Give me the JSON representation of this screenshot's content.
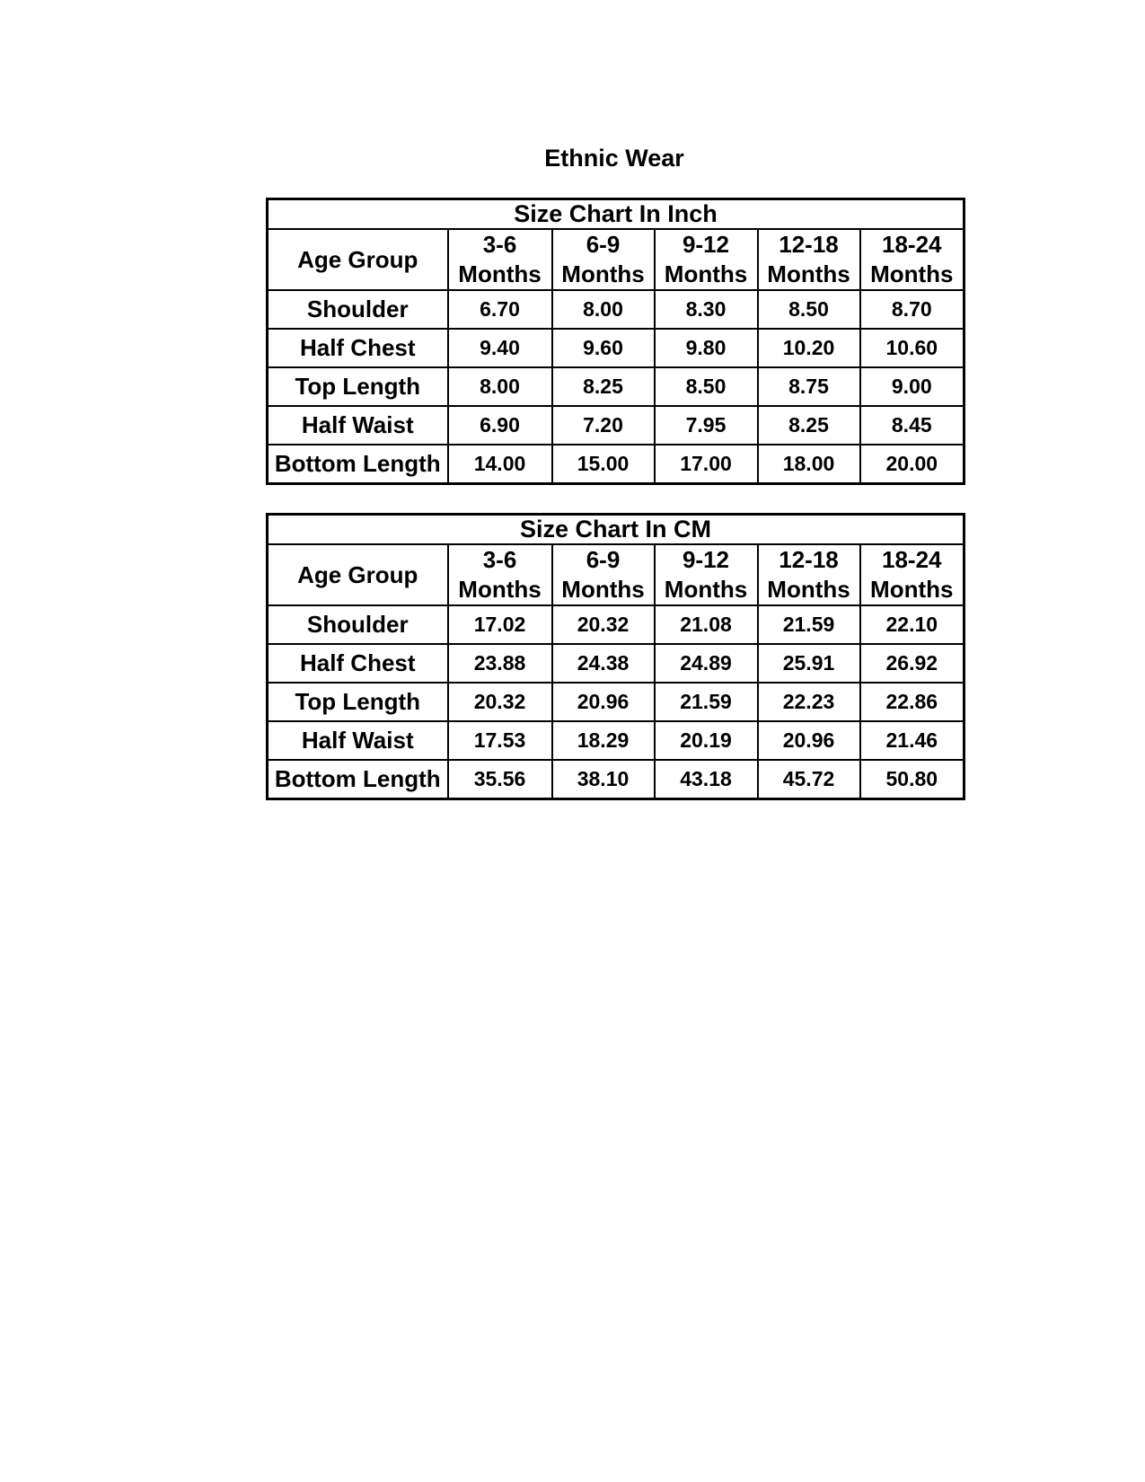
{
  "page": {
    "title": "Ethnic Wear"
  },
  "tables": [
    {
      "caption": "Size Chart In Inch",
      "corner_label": "Age Group",
      "column_headers": [
        {
          "range": "3-6",
          "unit": "Months"
        },
        {
          "range": "6-9",
          "unit": "Months"
        },
        {
          "range": "9-12",
          "unit": "Months"
        },
        {
          "range": "12-18",
          "unit": "Months"
        },
        {
          "range": "18-24",
          "unit": "Months"
        }
      ],
      "rows": [
        {
          "label": "Shoulder",
          "values": [
            "6.70",
            "8.00",
            "8.30",
            "8.50",
            "8.70"
          ]
        },
        {
          "label": "Half Chest",
          "values": [
            "9.40",
            "9.60",
            "9.80",
            "10.20",
            "10.60"
          ]
        },
        {
          "label": "Top Length",
          "values": [
            "8.00",
            "8.25",
            "8.50",
            "8.75",
            "9.00"
          ]
        },
        {
          "label": "Half Waist",
          "values": [
            "6.90",
            "7.20",
            "7.95",
            "8.25",
            "8.45"
          ]
        },
        {
          "label": "Bottom Length",
          "values": [
            "14.00",
            "15.00",
            "17.00",
            "18.00",
            "20.00"
          ]
        }
      ]
    },
    {
      "caption": "Size Chart In CM",
      "corner_label": "Age Group",
      "column_headers": [
        {
          "range": "3-6",
          "unit": "Months"
        },
        {
          "range": "6-9",
          "unit": "Months"
        },
        {
          "range": "9-12",
          "unit": "Months"
        },
        {
          "range": "12-18",
          "unit": "Months"
        },
        {
          "range": "18-24",
          "unit": "Months"
        }
      ],
      "rows": [
        {
          "label": "Shoulder",
          "values": [
            "17.02",
            "20.32",
            "21.08",
            "21.59",
            "22.10"
          ]
        },
        {
          "label": "Half Chest",
          "values": [
            "23.88",
            "24.38",
            "24.89",
            "25.91",
            "26.92"
          ]
        },
        {
          "label": "Top Length",
          "values": [
            "20.32",
            "20.96",
            "21.59",
            "22.23",
            "22.86"
          ]
        },
        {
          "label": "Half Waist",
          "values": [
            "17.53",
            "18.29",
            "20.19",
            "20.96",
            "21.46"
          ]
        },
        {
          "label": "Bottom Length",
          "values": [
            "35.56",
            "38.10",
            "43.18",
            "45.72",
            "50.80"
          ]
        }
      ]
    }
  ]
}
